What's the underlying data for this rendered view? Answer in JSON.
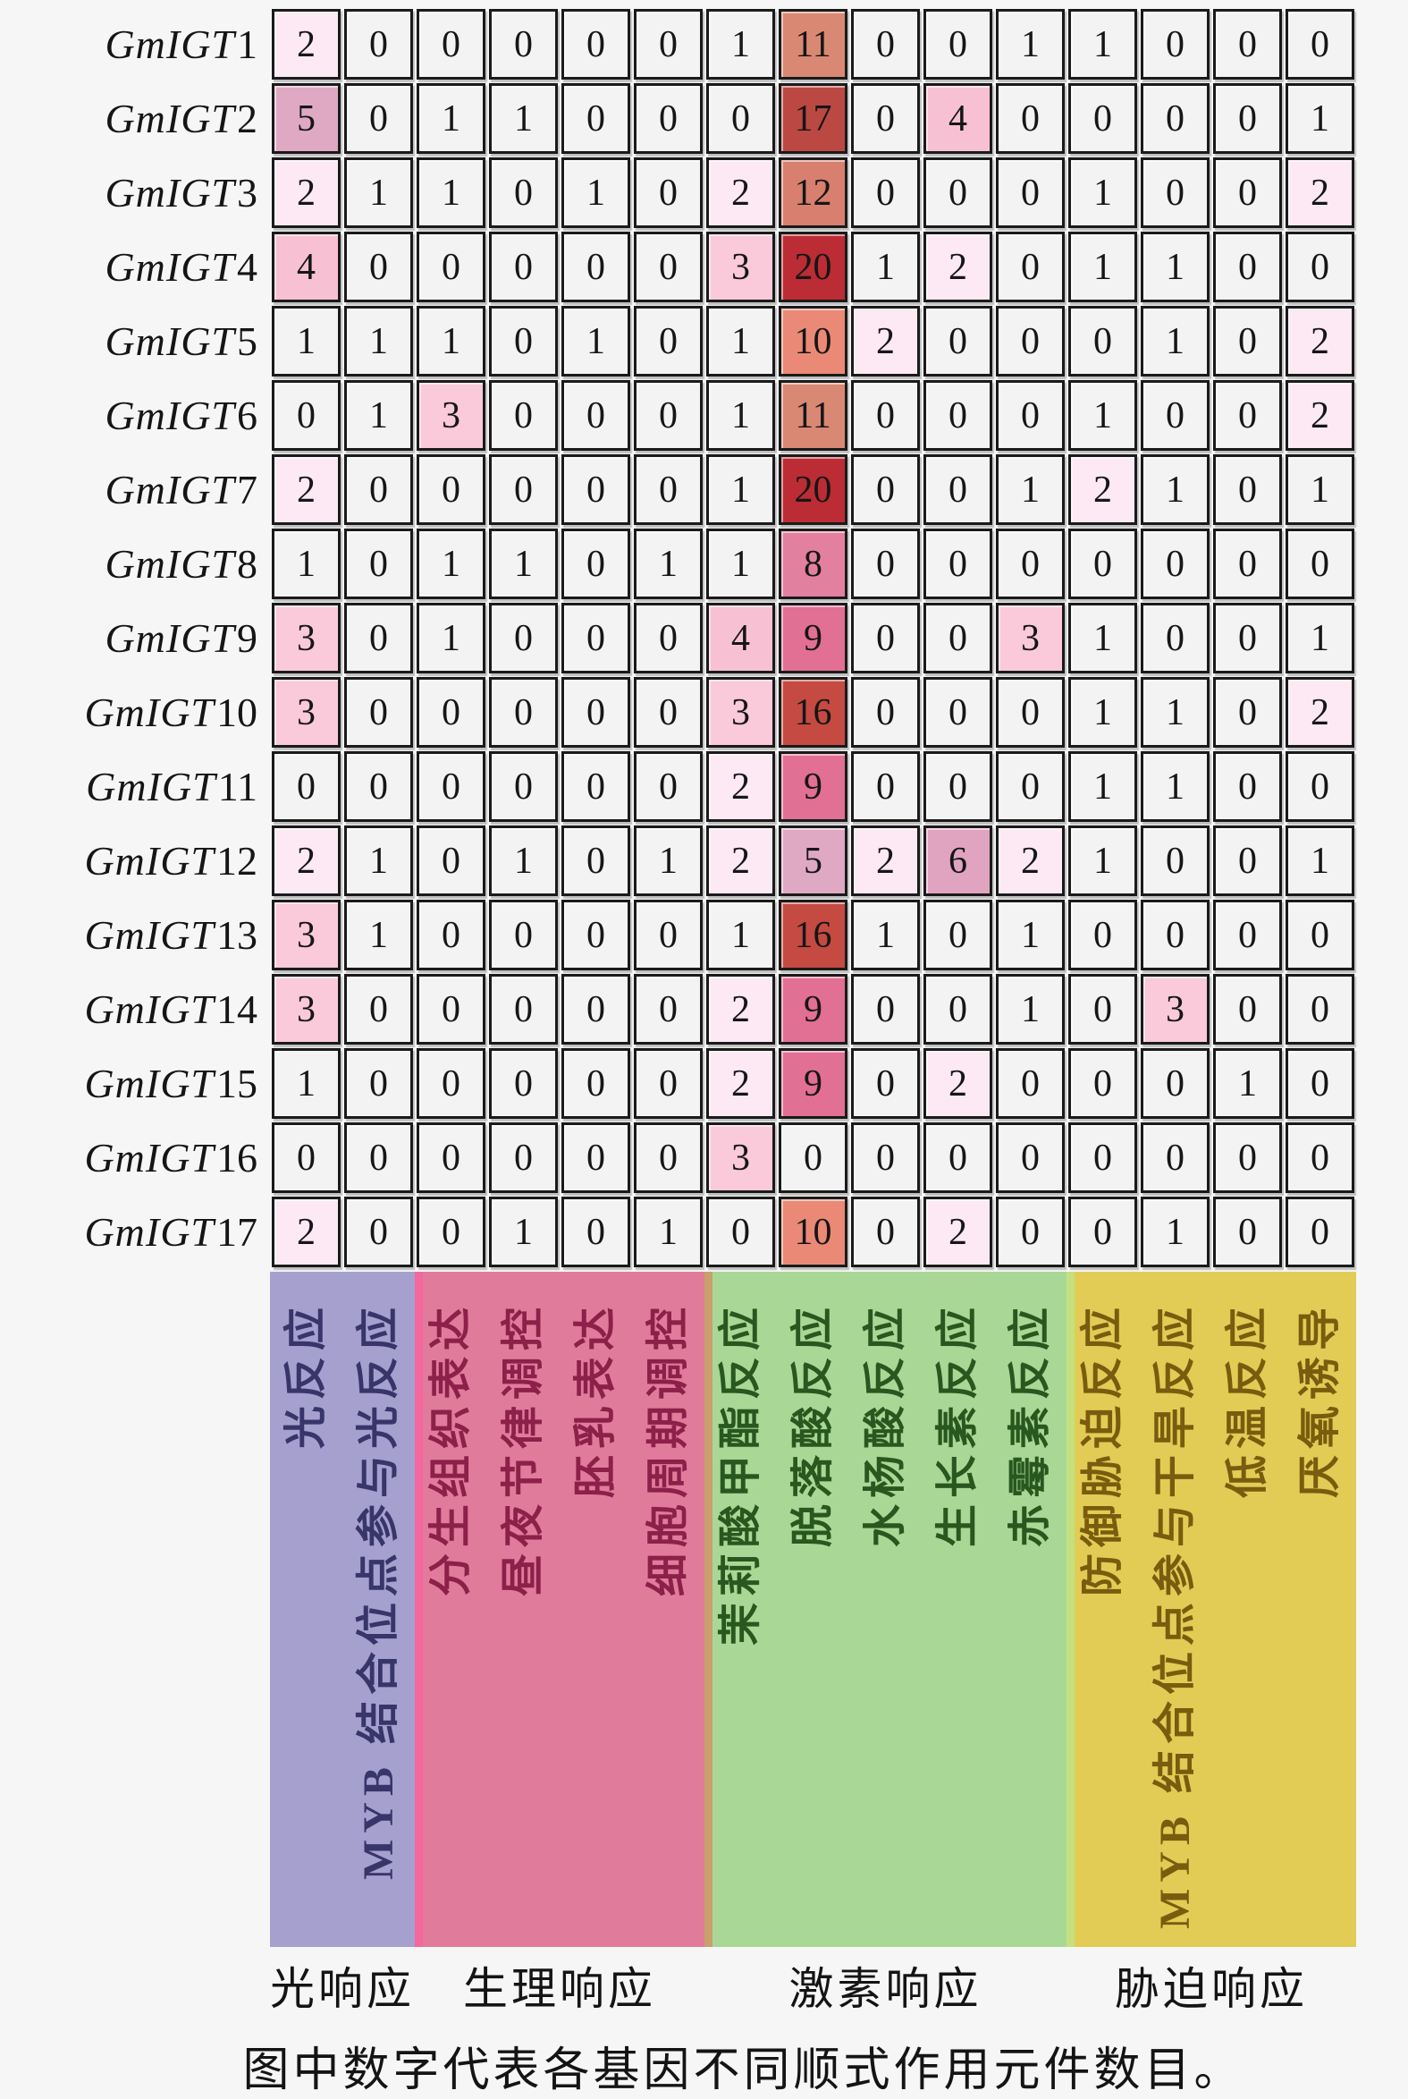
{
  "chart_data": {
    "type": "heatmap",
    "rows": [
      "GmIGT1",
      "GmIGT2",
      "GmIGT3",
      "GmIGT4",
      "GmIGT5",
      "GmIGT6",
      "GmIGT7",
      "GmIGT8",
      "GmIGT9",
      "GmIGT10",
      "GmIGT11",
      "GmIGT12",
      "GmIGT13",
      "GmIGT14",
      "GmIGT15",
      "GmIGT16",
      "GmIGT17"
    ],
    "row_prefix": "GmIGT",
    "columns": [
      {
        "label": "光反应",
        "group": "光响应"
      },
      {
        "label": "MYB 结合位点参与光反应",
        "group": "光响应"
      },
      {
        "label": "分生组织表达",
        "group": "生理响应"
      },
      {
        "label": "昼夜节律调控",
        "group": "生理响应"
      },
      {
        "label": "胚乳表达",
        "group": "生理响应"
      },
      {
        "label": "细胞周期调控",
        "group": "生理响应"
      },
      {
        "label": "茉莉酸甲酯反应",
        "group": "激素响应"
      },
      {
        "label": "脱落酸反应",
        "group": "激素响应"
      },
      {
        "label": "水杨酸反应",
        "group": "激素响应"
      },
      {
        "label": "生长素反应",
        "group": "激素响应"
      },
      {
        "label": "赤霉素反应",
        "group": "激素响应"
      },
      {
        "label": "防御胁迫反应",
        "group": "胁迫响应"
      },
      {
        "label": "MYB 结合位点参与干旱反应",
        "group": "胁迫响应"
      },
      {
        "label": "低温反应",
        "group": "胁迫响应"
      },
      {
        "label": "厌氧诱导",
        "group": "胁迫响应"
      }
    ],
    "groups": [
      {
        "label": "光响应",
        "span": 2,
        "band_color": "#a6a0cf",
        "text_color": "#38356a",
        "separator_color": null
      },
      {
        "label": "生理响应",
        "span": 4,
        "band_color": "#e07b9c",
        "text_color": "#8c2049",
        "separator_color": "#f4679f"
      },
      {
        "label": "激素响应",
        "span": 5,
        "band_color": "#a9d896",
        "text_color": "#28581f",
        "separator_color": "#c8a06b"
      },
      {
        "label": "胁迫响应",
        "span": 4,
        "band_color": "#e2cc55",
        "text_color": "#7a5c0e",
        "separator_color": "#c6e07f"
      }
    ],
    "values": [
      [
        2,
        0,
        0,
        0,
        0,
        0,
        1,
        11,
        0,
        0,
        1,
        1,
        0,
        0,
        0
      ],
      [
        5,
        0,
        1,
        1,
        0,
        0,
        0,
        17,
        0,
        4,
        0,
        0,
        0,
        0,
        1
      ],
      [
        2,
        1,
        1,
        0,
        1,
        0,
        2,
        12,
        0,
        0,
        0,
        1,
        0,
        0,
        2
      ],
      [
        4,
        0,
        0,
        0,
        0,
        0,
        3,
        20,
        1,
        2,
        0,
        1,
        1,
        0,
        0
      ],
      [
        1,
        1,
        1,
        0,
        1,
        0,
        1,
        10,
        2,
        0,
        0,
        0,
        1,
        0,
        2
      ],
      [
        0,
        1,
        3,
        0,
        0,
        0,
        1,
        11,
        0,
        0,
        0,
        1,
        0,
        0,
        2
      ],
      [
        2,
        0,
        0,
        0,
        0,
        0,
        1,
        20,
        0,
        0,
        1,
        2,
        1,
        0,
        1
      ],
      [
        1,
        0,
        1,
        1,
        0,
        1,
        1,
        8,
        0,
        0,
        0,
        0,
        0,
        0,
        0
      ],
      [
        3,
        0,
        1,
        0,
        0,
        0,
        4,
        9,
        0,
        0,
        3,
        1,
        0,
        0,
        1
      ],
      [
        3,
        0,
        0,
        0,
        0,
        0,
        3,
        16,
        0,
        0,
        0,
        1,
        1,
        0,
        2
      ],
      [
        0,
        0,
        0,
        0,
        0,
        0,
        2,
        9,
        0,
        0,
        0,
        1,
        1,
        0,
        0
      ],
      [
        2,
        1,
        0,
        1,
        0,
        1,
        2,
        5,
        2,
        6,
        2,
        1,
        0,
        0,
        1
      ],
      [
        3,
        1,
        0,
        0,
        0,
        0,
        1,
        16,
        1,
        0,
        1,
        0,
        0,
        0,
        0
      ],
      [
        3,
        0,
        0,
        0,
        0,
        0,
        2,
        9,
        0,
        0,
        1,
        0,
        3,
        0,
        0
      ],
      [
        1,
        0,
        0,
        0,
        0,
        0,
        2,
        9,
        0,
        2,
        0,
        0,
        0,
        1,
        0
      ],
      [
        0,
        0,
        0,
        0,
        0,
        0,
        3,
        0,
        0,
        0,
        0,
        0,
        0,
        0,
        0
      ],
      [
        2,
        0,
        0,
        1,
        0,
        1,
        0,
        10,
        0,
        2,
        0,
        0,
        1,
        0,
        0
      ]
    ],
    "heat_colors": {
      "0": "#f4f3f4",
      "1": "#f4f3f4",
      "2": "#fce9f3",
      "3": "#fac9da",
      "4": "#f8c1d3",
      "5": "#dfa9c4",
      "6": "#e0a3c0",
      "8": "#e4809f",
      "9": "#e26f94",
      "10": "#ea8a76",
      "11": "#d98874",
      "12": "#d87f6f",
      "16": "#c54a42",
      "17": "#bc4843",
      "20": "#bb2c35"
    },
    "caption": "图中数字代表各基因不同顺式作用元件数目。"
  }
}
